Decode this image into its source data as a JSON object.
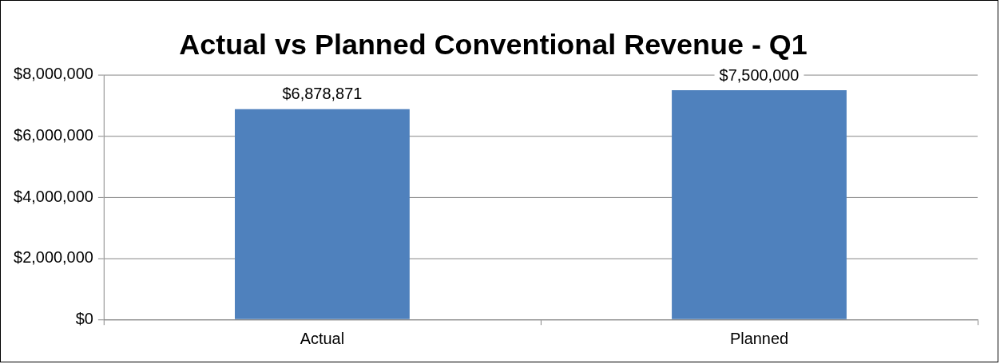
{
  "chart_data": {
    "type": "bar",
    "title": "Actual vs Planned Conventional Revenue - Q1",
    "categories": [
      "Actual",
      "Planned"
    ],
    "values": [
      6878871,
      7500000
    ],
    "value_labels": [
      "$6,878,871",
      "$7,500,000"
    ],
    "color": "#4f81bd",
    "ylim": [
      0,
      8000000
    ],
    "yticks": [
      {
        "value": 0,
        "label": "$0"
      },
      {
        "value": 2000000,
        "label": "$2,000,000"
      },
      {
        "value": 4000000,
        "label": "$4,000,000"
      },
      {
        "value": 6000000,
        "label": "$6,000,000"
      },
      {
        "value": 8000000,
        "label": "$8,000,000"
      }
    ],
    "grid": "y"
  }
}
